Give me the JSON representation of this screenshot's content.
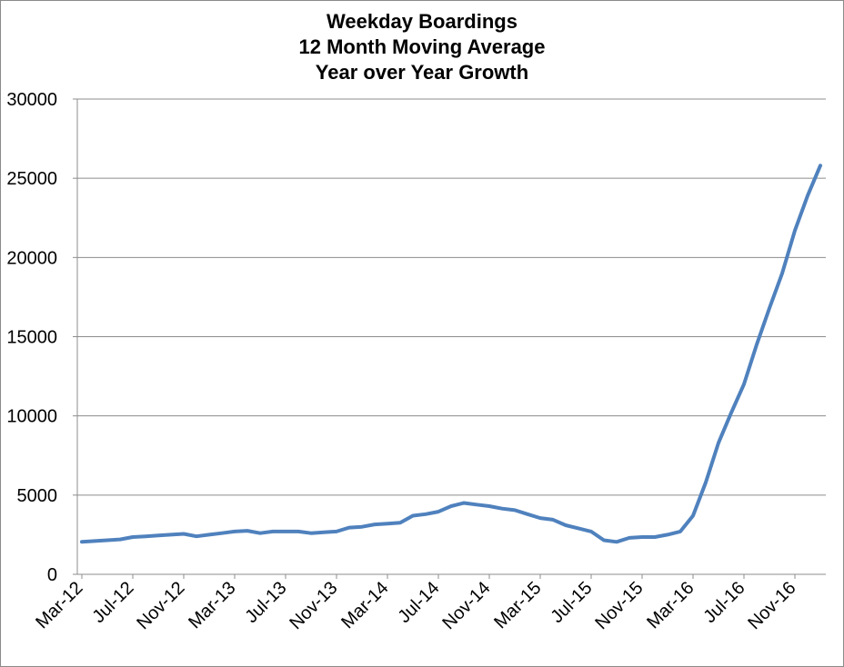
{
  "chart_data": {
    "type": "line",
    "title": [
      "Weekday Boardings",
      "12 Month Moving Average",
      "Year over Year Growth"
    ],
    "xlabel": "",
    "ylabel": "",
    "ylim": [
      0,
      30000
    ],
    "yticks": [
      0,
      5000,
      10000,
      15000,
      20000,
      25000,
      30000
    ],
    "grid": "horizontal",
    "legend": "none",
    "x": [
      "Mar-12",
      "Apr-12",
      "May-12",
      "Jun-12",
      "Jul-12",
      "Aug-12",
      "Sep-12",
      "Oct-12",
      "Nov-12",
      "Dec-12",
      "Jan-13",
      "Feb-13",
      "Mar-13",
      "Apr-13",
      "May-13",
      "Jun-13",
      "Jul-13",
      "Aug-13",
      "Sep-13",
      "Oct-13",
      "Nov-13",
      "Dec-13",
      "Jan-14",
      "Feb-14",
      "Mar-14",
      "Apr-14",
      "May-14",
      "Jun-14",
      "Jul-14",
      "Aug-14",
      "Sep-14",
      "Oct-14",
      "Nov-14",
      "Dec-14",
      "Jan-15",
      "Feb-15",
      "Mar-15",
      "Apr-15",
      "May-15",
      "Jun-15",
      "Jul-15",
      "Aug-15",
      "Sep-15",
      "Oct-15",
      "Nov-15",
      "Dec-15",
      "Jan-16",
      "Feb-16",
      "Mar-16",
      "Apr-16",
      "May-16",
      "Jun-16",
      "Jul-16",
      "Aug-16",
      "Sep-16",
      "Oct-16",
      "Nov-16",
      "Dec-16",
      "Jan-17"
    ],
    "xtick_labels": [
      "Mar-12",
      "Jul-12",
      "Nov-12",
      "Mar-13",
      "Jul-13",
      "Nov-13",
      "Mar-14",
      "Jul-14",
      "Nov-14",
      "Mar-15",
      "Jul-15",
      "Nov-15",
      "Mar-16",
      "Jul-16",
      "Nov-16"
    ],
    "series": [
      {
        "name": "",
        "color": "#4f81bd",
        "values": [
          2050,
          2100,
          2150,
          2200,
          2350,
          2400,
          2450,
          2500,
          2550,
          2400,
          2500,
          2600,
          2700,
          2750,
          2600,
          2700,
          2700,
          2700,
          2600,
          2650,
          2700,
          2950,
          3000,
          3150,
          3200,
          3250,
          3700,
          3800,
          3950,
          4300,
          4500,
          4400,
          4300,
          4150,
          4050,
          3800,
          3550,
          3450,
          3100,
          2900,
          2700,
          2150,
          2050,
          2300,
          2350,
          2350,
          2500,
          2700,
          3700,
          5800,
          8300,
          10200,
          12000,
          14500,
          16800,
          19000,
          21700,
          23900,
          25800
        ]
      }
    ]
  }
}
